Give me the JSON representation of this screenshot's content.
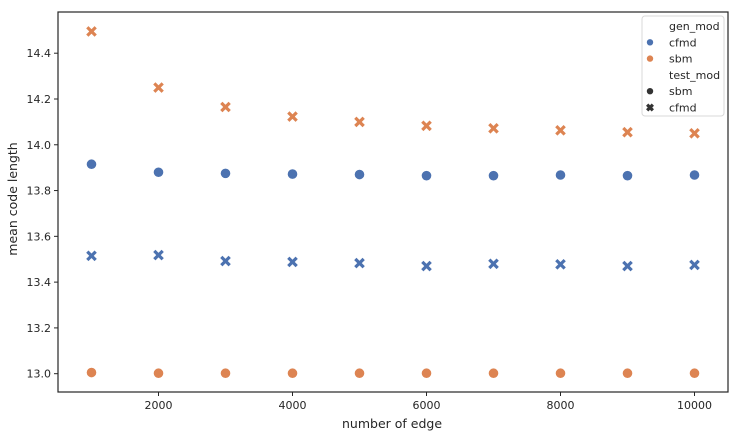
{
  "chart_data": {
    "type": "scatter",
    "xlabel": "number of edge",
    "ylabel": "mean code length",
    "xlim": [
      500,
      10500
    ],
    "ylim": [
      12.92,
      14.58
    ],
    "x_ticks": [
      2000,
      4000,
      6000,
      8000,
      10000
    ],
    "y_ticks": [
      13.0,
      13.2,
      13.4,
      13.6,
      13.8,
      14.0,
      14.2,
      14.4
    ],
    "grid": false,
    "legend_position": "top-right",
    "x": [
      1000,
      2000,
      3000,
      4000,
      5000,
      6000,
      7000,
      8000,
      9000,
      10000
    ],
    "series": [
      {
        "gen_mod": "cfmd",
        "test_mod": "sbm",
        "color": "#4c72b0",
        "marker": "circle",
        "values": [
          13.915,
          13.88,
          13.875,
          13.872,
          13.87,
          13.865,
          13.865,
          13.868,
          13.865,
          13.868
        ]
      },
      {
        "gen_mod": "sbm",
        "test_mod": "sbm",
        "color": "#dd8452",
        "marker": "circle",
        "values": [
          13.005,
          13.002,
          13.002,
          13.002,
          13.002,
          13.002,
          13.002,
          13.002,
          13.002,
          13.002
        ]
      },
      {
        "gen_mod": "cfmd",
        "test_mod": "cfmd",
        "color": "#4c72b0",
        "marker": "x",
        "values": [
          13.515,
          13.518,
          13.492,
          13.488,
          13.483,
          13.47,
          13.48,
          13.478,
          13.47,
          13.475
        ]
      },
      {
        "gen_mod": "sbm",
        "test_mod": "cfmd",
        "color": "#dd8452",
        "marker": "x",
        "values": [
          14.495,
          14.25,
          14.165,
          14.123,
          14.1,
          14.083,
          14.072,
          14.063,
          14.055,
          14.05
        ]
      }
    ],
    "legend": {
      "hue_title": "gen_mod",
      "hue_entries": [
        {
          "label": "cfmd",
          "color": "#4c72b0"
        },
        {
          "label": "sbm",
          "color": "#dd8452"
        }
      ],
      "style_title": "test_mod",
      "style_entries": [
        {
          "label": "sbm",
          "marker": "circle"
        },
        {
          "label": "cfmd",
          "marker": "x"
        }
      ]
    }
  }
}
